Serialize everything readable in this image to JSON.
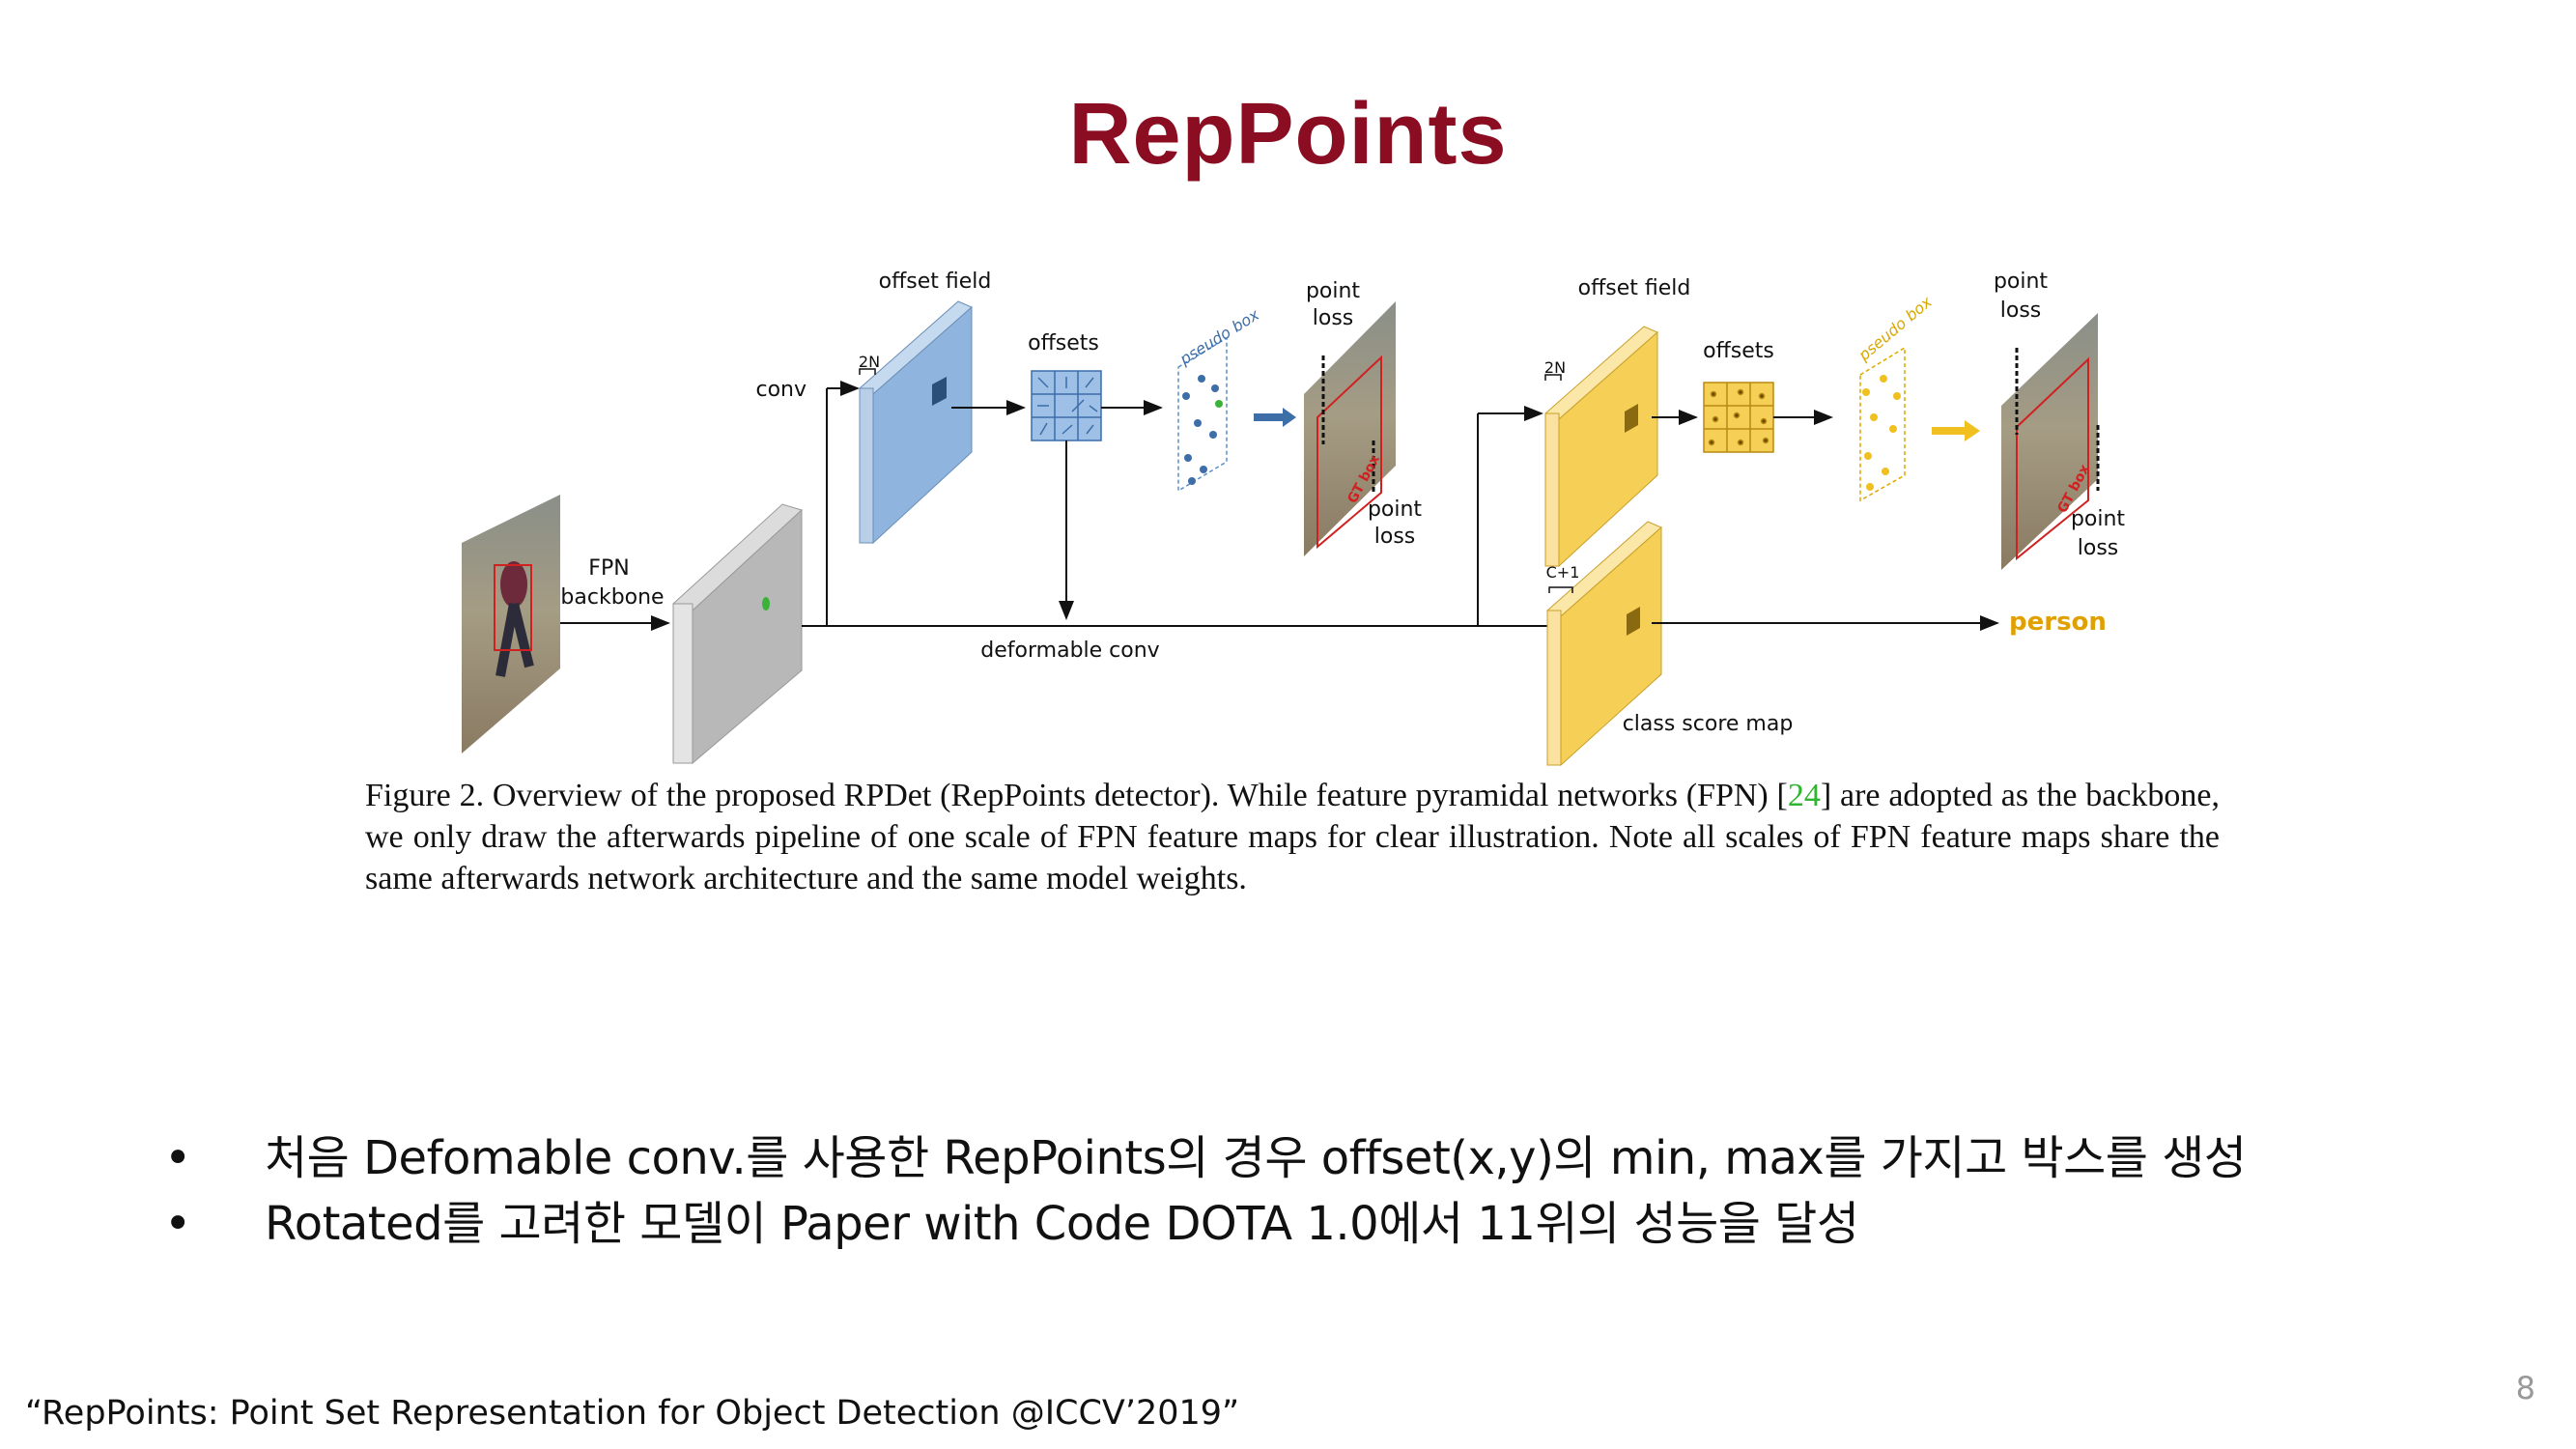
{
  "slide": {
    "title": "RepPoints",
    "page_number": "8",
    "footnote": "“RepPoints: Point Set Representation for Object Detection @ICCV’2019”"
  },
  "figure": {
    "labels": {
      "offset_field_1": "offset field",
      "offsets_1": "offsets",
      "pseudo_box_1": "pseudo box",
      "point_loss_1": "point\nloss",
      "point_loss_2": "point\nloss",
      "conv": "conv",
      "two_n_1": "2N",
      "fpn_backbone": "FPN\nbackbone",
      "deformable_conv": "deformable conv",
      "offset_field_2": "offset field",
      "offsets_2": "offsets",
      "pseudo_box_2": "pseudo box",
      "point_loss_3": "point\nloss",
      "point_loss_4": "point\nloss",
      "two_n_2": "2N",
      "c_plus_1": "C+1",
      "person": "person",
      "class_score_map": "class score map",
      "gt_box_1": "GT box",
      "gt_box_2": "GT box"
    },
    "colors": {
      "stage1": "#8fb4dd",
      "stage2": "#f6cf57",
      "person_label": "#e0a000",
      "backbone": "#c8c8c8"
    },
    "caption": {
      "part1": "Figure 2. Overview of the proposed RPDet (RepPoints detector). While feature pyramidal networks (FPN) [",
      "ref": "24",
      "part2": "] are adopted as the backbone, we only draw the afterwards pipeline of one scale of FPN feature maps for clear illustration. Note all scales of FPN feature maps share the same afterwards network architecture and the same model weights."
    }
  },
  "bullets": [
    {
      "marker": "•",
      "text": "처음 Defomable conv.를 사용한 RepPoints의 경우 offset(x,y)의 min, max를 가지고 박스를 생성"
    },
    {
      "marker": "•",
      "text": "Rotated를 고려한 모델이 Paper with Code DOTA 1.0에서 11위의 성능을 달성"
    }
  ]
}
